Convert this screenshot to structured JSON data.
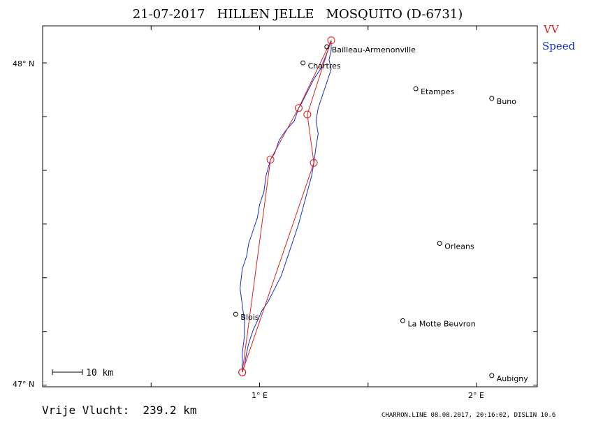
{
  "title": "21-07-2017   HILLEN JELLE   MOSQUITO (D-6731)",
  "legend": [
    {
      "label": "VV",
      "color": "#e0201a"
    },
    {
      "label": "Speed",
      "color": "#1030d0"
    }
  ],
  "axes": {
    "lat_labels": [
      {
        "text": "48° N",
        "value": 48.0
      },
      {
        "text": "47° N",
        "value": 47.0
      }
    ],
    "lon_labels": [
      {
        "text": "1° E",
        "value": 1.0
      },
      {
        "text": "2° E",
        "value": 2.0
      }
    ],
    "lat_range": [
      46.995,
      48.115
    ],
    "lon_range": [
      0.0,
      2.28
    ]
  },
  "scale_bar": {
    "label": "10 km"
  },
  "distance_text": "Vrije Vlucht:  239.2 km",
  "footer": "CHARRON.LINE 08.08.2017, 20:16:02, DISLIN 10.6",
  "cities": [
    {
      "name": "Bailleau-Armenonville",
      "lon": 1.31,
      "lat": 48.05
    },
    {
      "name": "Chartres",
      "lon": 1.2,
      "lat": 48.0
    },
    {
      "name": "Etampes",
      "lon": 1.72,
      "lat": 47.92
    },
    {
      "name": "Buno",
      "lon": 2.07,
      "lat": 47.89
    },
    {
      "name": "Orleans",
      "lon": 1.83,
      "lat": 47.44
    },
    {
      "name": "Blois",
      "lon": 0.89,
      "lat": 47.22
    },
    {
      "name": "La Motte Beuvron",
      "lon": 1.66,
      "lat": 47.2
    },
    {
      "name": "Aubigny",
      "lon": 2.07,
      "lat": 47.03
    }
  ],
  "turnpoints": [
    {
      "lon": 0.92,
      "lat": 47.04
    },
    {
      "lon": 1.05,
      "lat": 47.7
    },
    {
      "lon": 1.18,
      "lat": 47.86
    },
    {
      "lon": 1.33,
      "lat": 48.07
    },
    {
      "lon": 1.22,
      "lat": 47.84
    },
    {
      "lon": 1.25,
      "lat": 47.69
    },
    {
      "lon": 0.92,
      "lat": 47.04
    }
  ],
  "track": [
    {
      "lon": 0.92,
      "lat": 47.04
    },
    {
      "lon": 0.93,
      "lat": 47.06
    },
    {
      "lon": 0.94,
      "lat": 47.1
    },
    {
      "lon": 0.95,
      "lat": 47.13
    },
    {
      "lon": 0.97,
      "lat": 47.17
    },
    {
      "lon": 0.99,
      "lat": 47.2
    },
    {
      "lon": 1.01,
      "lat": 47.23
    },
    {
      "lon": 1.04,
      "lat": 47.26
    },
    {
      "lon": 1.07,
      "lat": 47.3
    },
    {
      "lon": 1.1,
      "lat": 47.34
    },
    {
      "lon": 1.12,
      "lat": 47.38
    },
    {
      "lon": 1.14,
      "lat": 47.42
    },
    {
      "lon": 1.16,
      "lat": 47.46
    },
    {
      "lon": 1.18,
      "lat": 47.5
    },
    {
      "lon": 1.2,
      "lat": 47.55
    },
    {
      "lon": 1.22,
      "lat": 47.6
    },
    {
      "lon": 1.24,
      "lat": 47.65
    },
    {
      "lon": 1.25,
      "lat": 47.69
    },
    {
      "lon": 1.26,
      "lat": 47.74
    },
    {
      "lon": 1.27,
      "lat": 47.78
    },
    {
      "lon": 1.26,
      "lat": 47.82
    },
    {
      "lon": 1.27,
      "lat": 47.86
    },
    {
      "lon": 1.29,
      "lat": 47.9
    },
    {
      "lon": 1.31,
      "lat": 47.94
    },
    {
      "lon": 1.33,
      "lat": 47.98
    },
    {
      "lon": 1.32,
      "lat": 48.01
    },
    {
      "lon": 1.33,
      "lat": 48.04
    },
    {
      "lon": 1.33,
      "lat": 48.07
    },
    {
      "lon": 1.31,
      "lat": 48.03
    },
    {
      "lon": 1.28,
      "lat": 47.98
    },
    {
      "lon": 1.25,
      "lat": 47.95
    },
    {
      "lon": 1.22,
      "lat": 47.91
    },
    {
      "lon": 1.19,
      "lat": 47.87
    },
    {
      "lon": 1.18,
      "lat": 47.86
    },
    {
      "lon": 1.16,
      "lat": 47.82
    },
    {
      "lon": 1.12,
      "lat": 47.79
    },
    {
      "lon": 1.09,
      "lat": 47.76
    },
    {
      "lon": 1.07,
      "lat": 47.72
    },
    {
      "lon": 1.05,
      "lat": 47.7
    },
    {
      "lon": 1.03,
      "lat": 47.65
    },
    {
      "lon": 1.02,
      "lat": 47.6
    },
    {
      "lon": 1.0,
      "lat": 47.56
    },
    {
      "lon": 0.99,
      "lat": 47.52
    },
    {
      "lon": 0.97,
      "lat": 47.48
    },
    {
      "lon": 0.95,
      "lat": 47.44
    },
    {
      "lon": 0.94,
      "lat": 47.4
    },
    {
      "lon": 0.92,
      "lat": 47.36
    },
    {
      "lon": 0.91,
      "lat": 47.3
    },
    {
      "lon": 0.92,
      "lat": 47.25
    },
    {
      "lon": 0.93,
      "lat": 47.2
    },
    {
      "lon": 0.93,
      "lat": 47.15
    },
    {
      "lon": 0.92,
      "lat": 47.1
    },
    {
      "lon": 0.92,
      "lat": 47.04
    }
  ]
}
